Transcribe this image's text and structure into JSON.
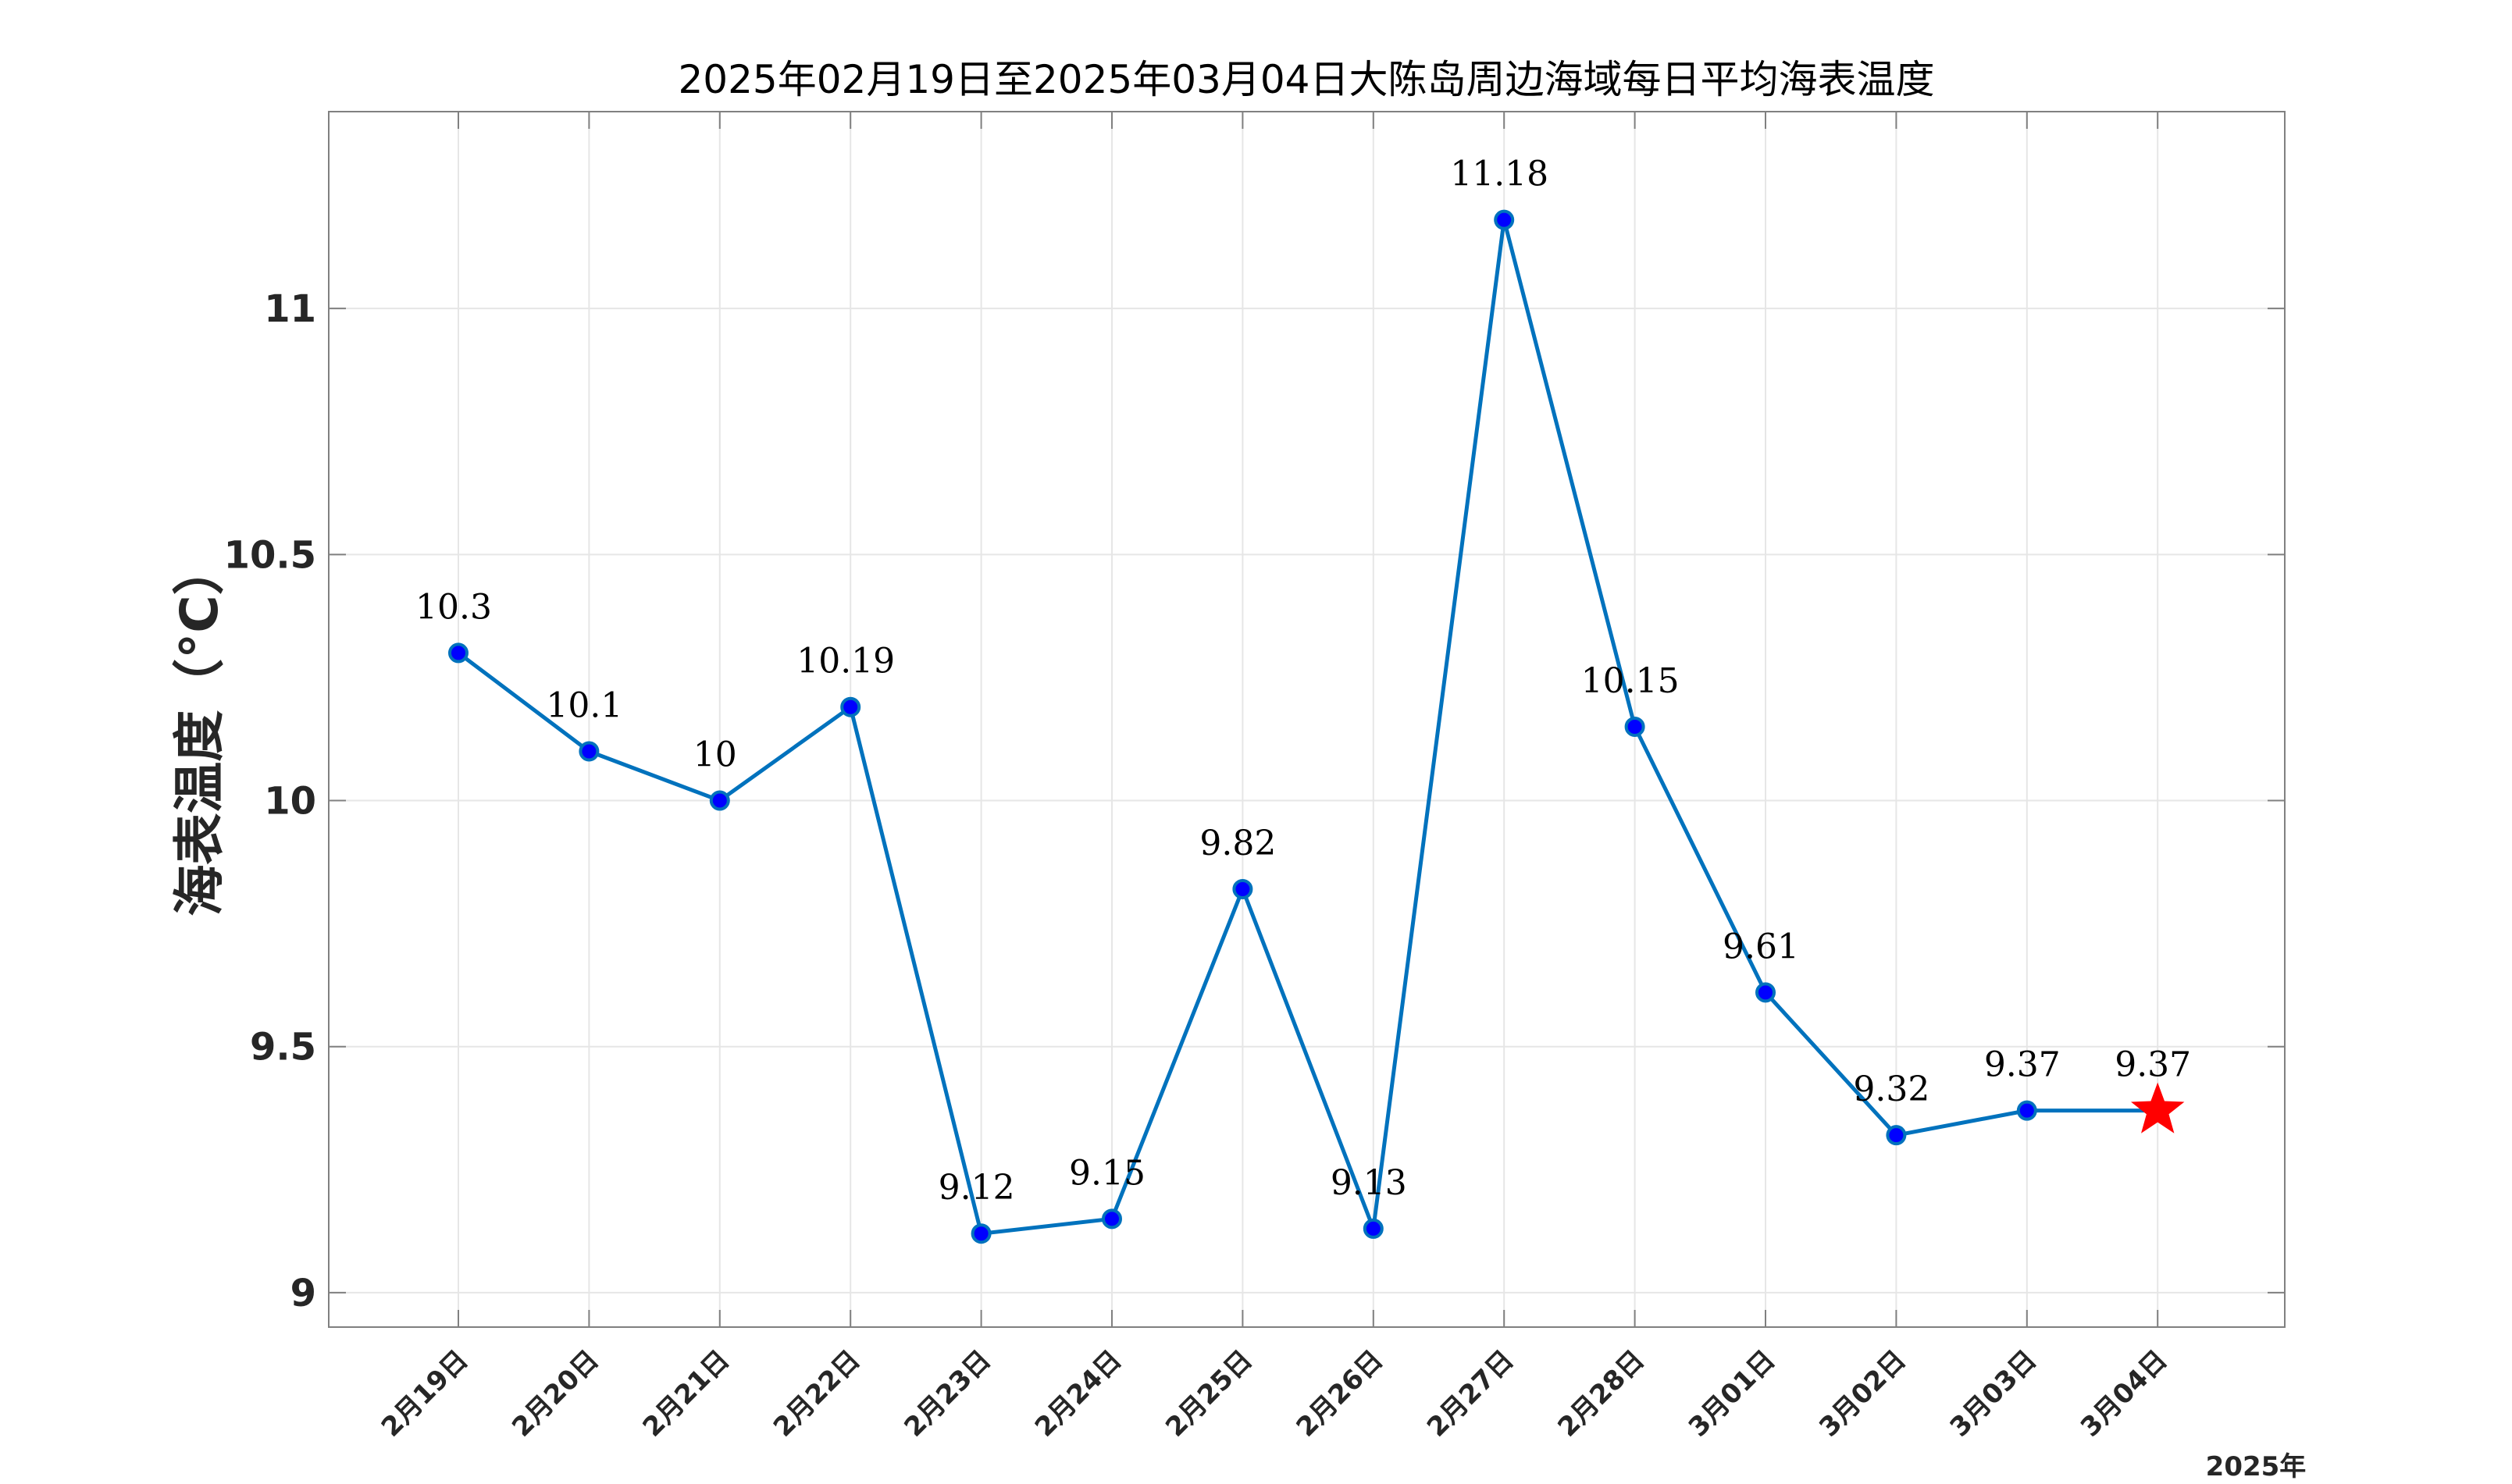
{
  "chart_data": {
    "type": "line",
    "title": "2025年02月19日至2025年03月04日大陈岛周边海域每日平均海表温度",
    "ylabel": "海表温度（°C）",
    "xlabel": "",
    "x_extra_label": "2025年",
    "categories": [
      "2月19日",
      "2月20日",
      "2月21日",
      "2月22日",
      "2月23日",
      "2月24日",
      "2月25日",
      "2月26日",
      "2月27日",
      "2月28日",
      "3月01日",
      "3月02日",
      "3月03日",
      "3月04日"
    ],
    "values": [
      10.3,
      10.1,
      10,
      10.19,
      9.12,
      9.15,
      9.82,
      9.13,
      11.18,
      10.15,
      9.61,
      9.32,
      9.37,
      9.37
    ],
    "data_labels": [
      "10.3",
      "10.1",
      "10",
      "10.19",
      "9.12",
      "9.15",
      "9.82",
      "9.13",
      "11.18",
      "10.15",
      "9.61",
      "9.32",
      "9.37",
      "9.37"
    ],
    "ylim": [
      8.93,
      11.4
    ],
    "yticks": [
      9,
      9.5,
      10,
      10.5,
      11
    ],
    "ytick_labels": [
      "9",
      "9.5",
      "10",
      "10.5",
      "11"
    ],
    "grid": true,
    "highlight_last_point": "star",
    "colors": {
      "line": "#0072BD",
      "marker_face": "#0000FF",
      "marker_edge": "#0072BD",
      "star": "#FF0000",
      "grid": "#E6E6E6",
      "axes": "#808080"
    }
  }
}
